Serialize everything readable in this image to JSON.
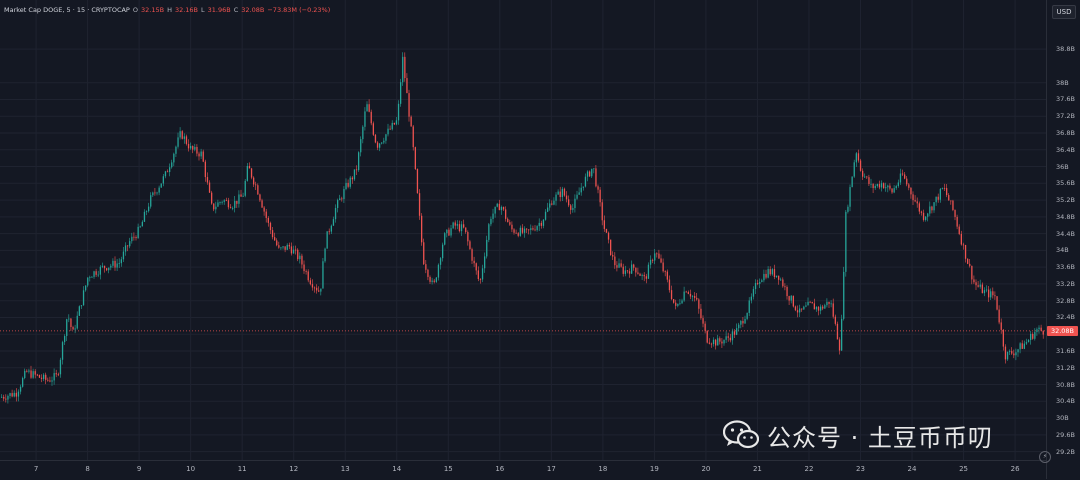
{
  "legend": {
    "symbol": "Market Cap DOGE, 5 · 15 · CRYPTOCAP",
    "o_label": "O",
    "o_value": "32.15B",
    "h_label": "H",
    "h_value": "32.16B",
    "l_label": "L",
    "l_value": "31.96B",
    "c_label": "C",
    "c_value": "32.08B",
    "change": "−73.83M (−0.23%)"
  },
  "currency_button": "USD",
  "current_price_label": "32.08B",
  "watermark": {
    "text": "公众号 · 土豆币币叨",
    "logo_icon": "wechat-icon"
  },
  "colors": {
    "background": "#141823",
    "up": "#26a69a",
    "down": "#ef5350",
    "grid": "#1f2330",
    "axis_text": "#b2b5be"
  },
  "chart_data": {
    "type": "candlestick",
    "title": "Market Cap DOGE, 5 · 15 · CRYPTOCAP",
    "ylabel": "",
    "xlabel": "",
    "currency": "USD",
    "ylim": [
      29.0,
      39.4
    ],
    "y_ticks": [
      "38.8B",
      "38B",
      "37.6B",
      "37.2B",
      "36.8B",
      "36.4B",
      "36B",
      "35.6B",
      "35.2B",
      "34.8B",
      "34.4B",
      "34B",
      "33.6B",
      "33.2B",
      "32.8B",
      "32.4B",
      "32B",
      "31.6B",
      "31.2B",
      "30.8B",
      "30.4B",
      "30B",
      "29.6B",
      "29.2B"
    ],
    "y_tick_values": [
      38.8,
      38.0,
      37.6,
      37.2,
      36.8,
      36.4,
      36.0,
      35.6,
      35.2,
      34.8,
      34.4,
      34.0,
      33.6,
      33.2,
      32.8,
      32.4,
      32.0,
      31.6,
      31.2,
      30.8,
      30.4,
      30.0,
      29.6,
      29.2
    ],
    "x_ticks": [
      "7",
      "8",
      "9",
      "10",
      "11",
      "12",
      "13",
      "14",
      "15",
      "16",
      "17",
      "18",
      "19",
      "20",
      "21",
      "22",
      "23",
      "24",
      "25",
      "26"
    ],
    "x_tick_values": [
      7,
      8,
      9,
      10,
      11,
      12,
      13,
      14,
      15,
      16,
      17,
      18,
      19,
      20,
      21,
      22,
      23,
      24,
      25,
      26
    ],
    "xlim": [
      6.3,
      26.6
    ],
    "current_price": 32.08,
    "path": [
      [
        6.3,
        30.5
      ],
      [
        6.6,
        30.6
      ],
      [
        6.8,
        31.1
      ],
      [
        7.2,
        30.9
      ],
      [
        7.4,
        31.0
      ],
      [
        7.6,
        32.5
      ],
      [
        7.7,
        32.0
      ],
      [
        8.0,
        33.4
      ],
      [
        8.3,
        33.6
      ],
      [
        8.6,
        33.7
      ],
      [
        8.8,
        34.2
      ],
      [
        9.0,
        34.5
      ],
      [
        9.2,
        35.2
      ],
      [
        9.5,
        35.8
      ],
      [
        9.8,
        36.8
      ],
      [
        10.0,
        36.4
      ],
      [
        10.2,
        36.3
      ],
      [
        10.4,
        35.0
      ],
      [
        10.6,
        35.2
      ],
      [
        10.8,
        35.1
      ],
      [
        11.0,
        35.3
      ],
      [
        11.1,
        36.0
      ],
      [
        11.3,
        35.4
      ],
      [
        11.5,
        34.6
      ],
      [
        11.7,
        34.0
      ],
      [
        11.9,
        34.1
      ],
      [
        12.1,
        33.8
      ],
      [
        12.3,
        33.3
      ],
      [
        12.5,
        33.0
      ],
      [
        12.6,
        34.2
      ],
      [
        12.8,
        35.0
      ],
      [
        13.0,
        35.5
      ],
      [
        13.2,
        35.9
      ],
      [
        13.4,
        37.5
      ],
      [
        13.6,
        36.5
      ],
      [
        13.8,
        36.8
      ],
      [
        14.0,
        37.1
      ],
      [
        14.1,
        38.6
      ],
      [
        14.3,
        36.5
      ],
      [
        14.5,
        33.8
      ],
      [
        14.7,
        33.1
      ],
      [
        14.9,
        34.3
      ],
      [
        15.1,
        34.6
      ],
      [
        15.3,
        34.5
      ],
      [
        15.5,
        33.6
      ],
      [
        15.6,
        33.2
      ],
      [
        15.8,
        34.8
      ],
      [
        16.0,
        35.1
      ],
      [
        16.2,
        34.5
      ],
      [
        16.5,
        34.4
      ],
      [
        16.8,
        34.7
      ],
      [
        17.0,
        35.2
      ],
      [
        17.2,
        35.4
      ],
      [
        17.4,
        35.0
      ],
      [
        17.6,
        35.6
      ],
      [
        17.8,
        36.0
      ],
      [
        18.0,
        34.6
      ],
      [
        18.2,
        33.7
      ],
      [
        18.4,
        33.5
      ],
      [
        18.6,
        33.6
      ],
      [
        18.8,
        33.3
      ],
      [
        19.0,
        34.0
      ],
      [
        19.2,
        33.4
      ],
      [
        19.4,
        32.6
      ],
      [
        19.6,
        33.1
      ],
      [
        19.8,
        32.8
      ],
      [
        20.0,
        31.9
      ],
      [
        20.2,
        31.8
      ],
      [
        20.4,
        31.9
      ],
      [
        20.6,
        32.1
      ],
      [
        20.8,
        32.6
      ],
      [
        21.0,
        33.3
      ],
      [
        21.2,
        33.5
      ],
      [
        21.4,
        33.4
      ],
      [
        21.6,
        32.9
      ],
      [
        21.8,
        32.5
      ],
      [
        22.0,
        32.7
      ],
      [
        22.2,
        32.6
      ],
      [
        22.4,
        32.8
      ],
      [
        22.6,
        31.6
      ],
      [
        22.7,
        34.8
      ],
      [
        22.9,
        36.4
      ],
      [
        23.0,
        35.9
      ],
      [
        23.2,
        35.5
      ],
      [
        23.4,
        35.6
      ],
      [
        23.6,
        35.4
      ],
      [
        23.8,
        35.8
      ],
      [
        24.0,
        35.3
      ],
      [
        24.2,
        34.8
      ],
      [
        24.4,
        35.1
      ],
      [
        24.6,
        35.5
      ],
      [
        24.8,
        34.9
      ],
      [
        25.0,
        34.0
      ],
      [
        25.2,
        33.2
      ],
      [
        25.4,
        33.0
      ],
      [
        25.6,
        32.9
      ],
      [
        25.8,
        31.5
      ],
      [
        26.0,
        31.6
      ],
      [
        26.2,
        31.8
      ],
      [
        26.4,
        32.1
      ],
      [
        26.55,
        32.08
      ]
    ]
  }
}
